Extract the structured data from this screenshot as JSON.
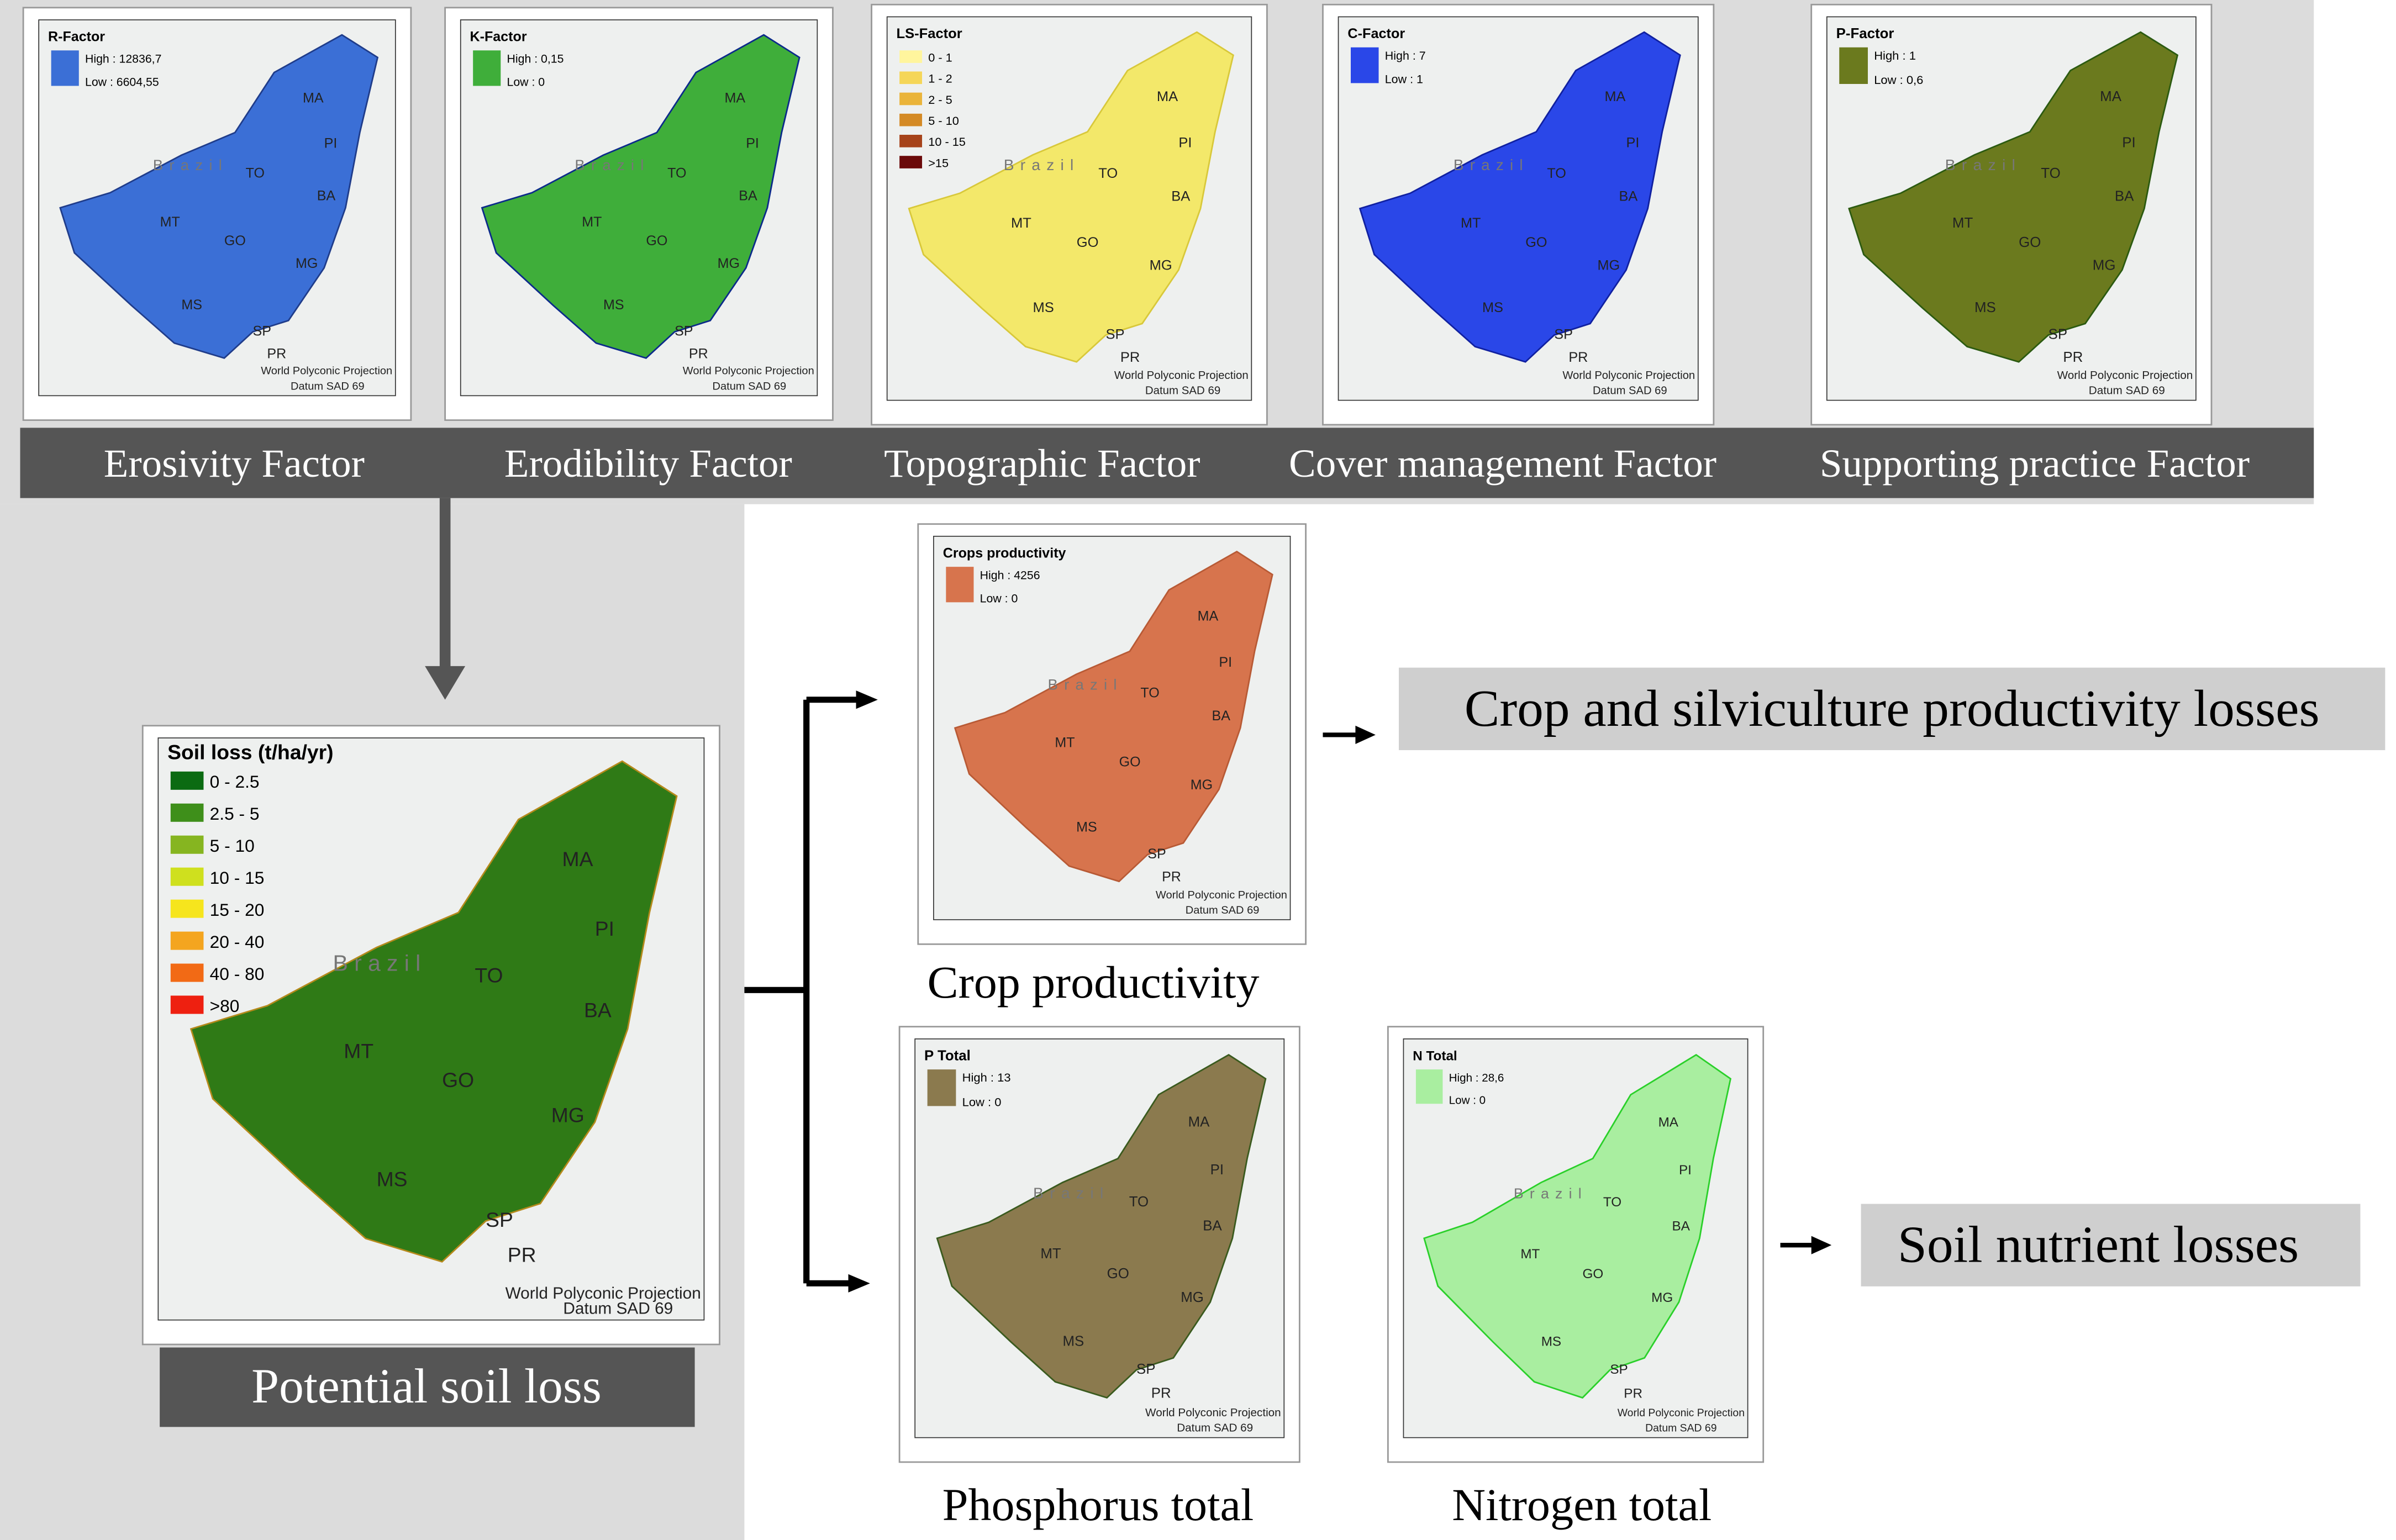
{
  "factors": [
    {
      "label": "Erosivity Factor",
      "map": {
        "title": "R-Factor",
        "high": "High : 12836,7",
        "low": "Low : 6604,55"
      }
    },
    {
      "label": "Erodibility Factor",
      "map": {
        "title": "K-Factor",
        "high": "High : 0,15",
        "low": "Low : 0"
      }
    },
    {
      "label": "Topographic Factor",
      "map": {
        "title": "LS-Factor",
        "classes": [
          "0 - 1",
          "1 - 2",
          "2 - 5",
          "5 - 10",
          "10 - 15",
          ">15"
        ]
      }
    },
    {
      "label": "Cover management Factor",
      "map": {
        "title": "C-Factor",
        "high": "High : 7",
        "low": "Low : 1"
      }
    },
    {
      "label": "Supporting practice Factor",
      "map": {
        "title": "P-Factor",
        "high": "High : 1",
        "low": "Low : 0,6"
      }
    }
  ],
  "soil_loss": {
    "label": "Potential soil loss",
    "map": {
      "title": "Soil loss (t/ha/yr)",
      "classes": [
        "0 - 2.5",
        "2.5 - 5",
        "5 - 10",
        "10 - 15",
        "15 - 20",
        "20 - 40",
        "40 - 80",
        ">80"
      ]
    }
  },
  "outputs": [
    {
      "label": "Crop productivity",
      "map": {
        "title": "Crops productivity",
        "high": "High : 4256",
        "low": "Low : 0"
      }
    },
    {
      "label": "Phosphorus total",
      "map": {
        "title": "P Total",
        "high": "High : 13",
        "low": "Low : 0"
      }
    },
    {
      "label": "Nitrogen total",
      "map": {
        "title": "N Total",
        "high": "High : 28,6",
        "low": "Low : 0"
      }
    }
  ],
  "losses": [
    "Crop and silviculture productivity losses",
    "Soil nutrient losses"
  ],
  "map_common": {
    "country": "Brazil",
    "projection": "World Polyconic Projection",
    "datum": "Datum SAD 69",
    "states": [
      "MA",
      "PI",
      "TO",
      "BA",
      "MT",
      "GO",
      "MG",
      "MS",
      "SP",
      "PR"
    ]
  }
}
